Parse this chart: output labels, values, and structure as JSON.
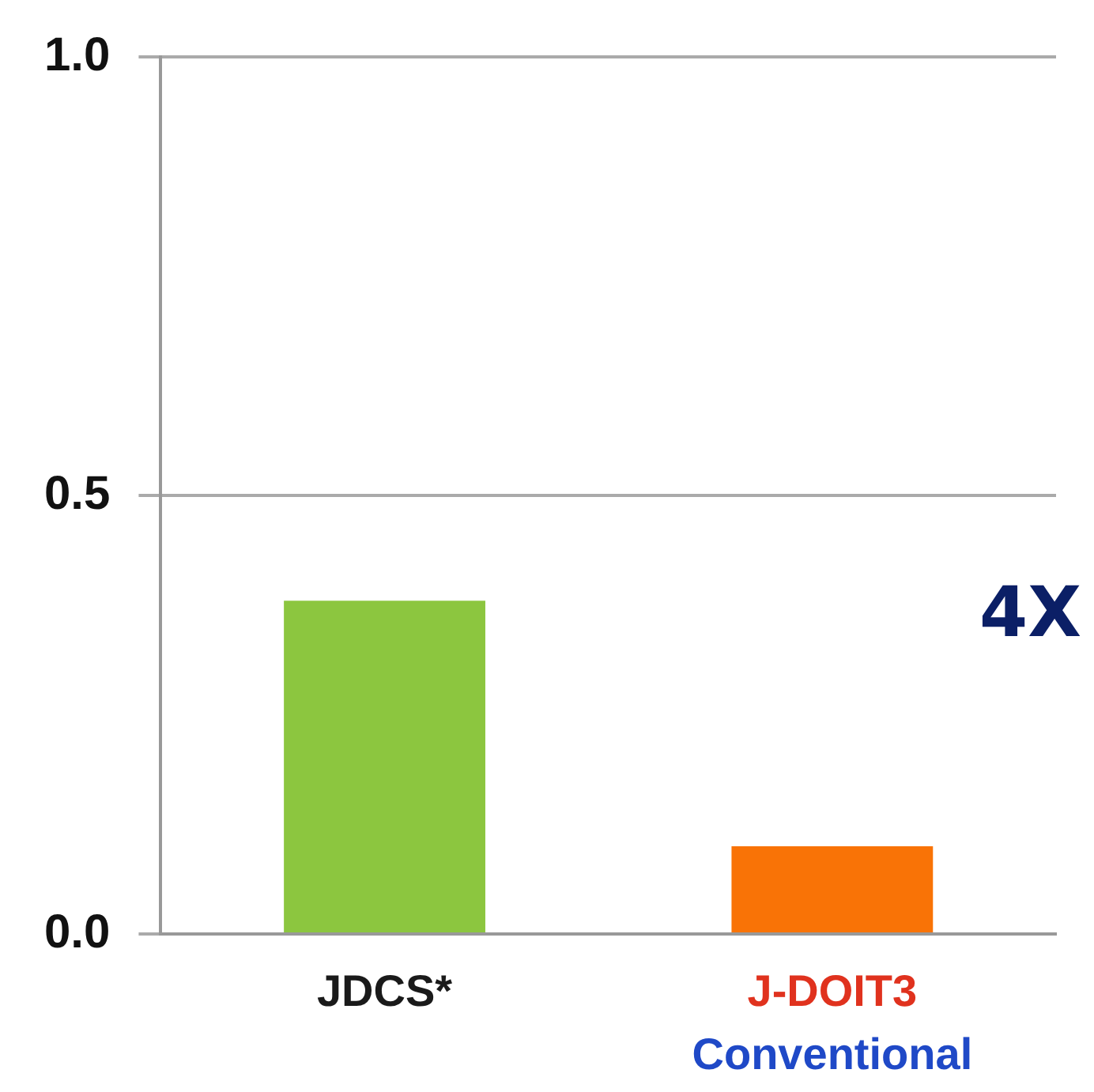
{
  "chart_data": {
    "type": "bar",
    "categories": [
      "JDCS*",
      "J-DOIT3\nConventional"
    ],
    "values": [
      0.38,
      0.1
    ],
    "colors": [
      "#8cc63f",
      "#f97306"
    ],
    "ylim": [
      0,
      1
    ],
    "yticks": [
      {
        "value": 0,
        "label": "0.0"
      },
      {
        "value": 0.5,
        "label": "0.5"
      },
      {
        "value": 1,
        "label": "1.0"
      }
    ],
    "grid": "y",
    "legend": false,
    "annotations": [
      "4X"
    ]
  }
}
